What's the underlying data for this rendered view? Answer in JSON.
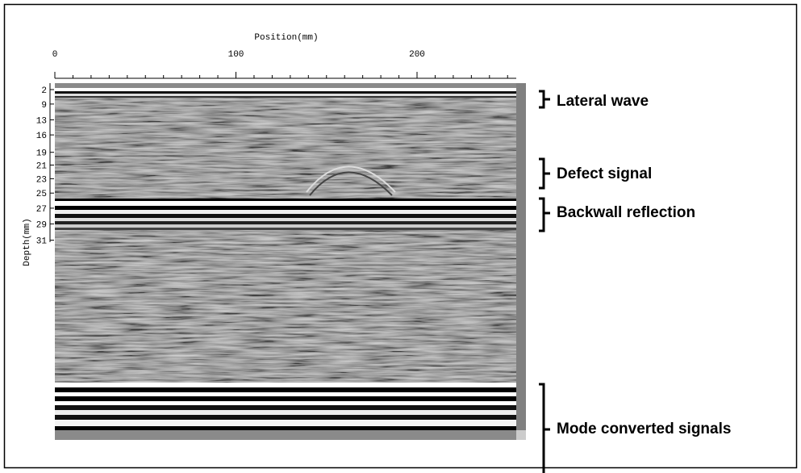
{
  "x_axis": {
    "label": "Position(mm)",
    "ticks": [
      0,
      100,
      200
    ]
  },
  "y_axis": {
    "label": "Depth(mm)",
    "ticks": [
      2,
      9,
      13,
      16,
      19,
      21,
      23,
      25,
      27,
      29,
      31
    ]
  },
  "annotations": [
    "Lateral wave",
    "Defect signal",
    "Backwall reflection",
    "Mode converted signals"
  ]
}
